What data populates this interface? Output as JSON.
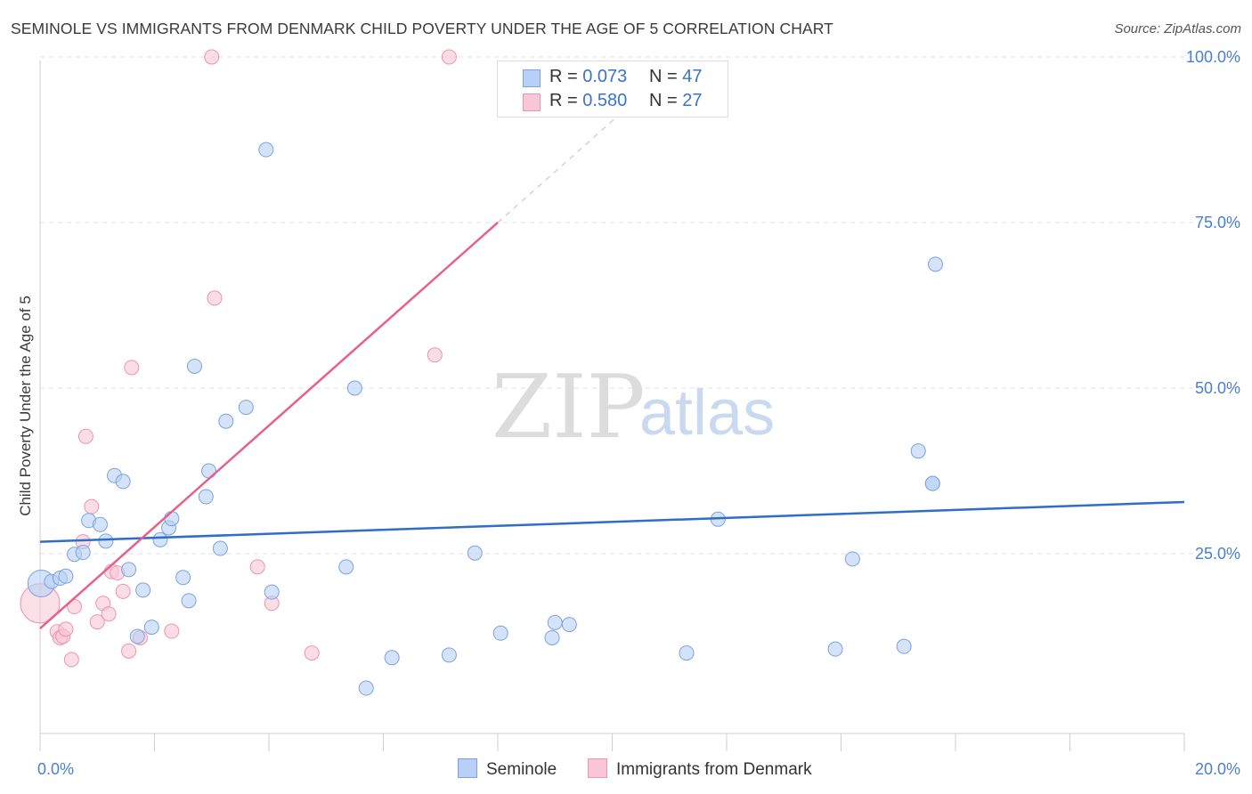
{
  "title": "SEMINOLE VS IMMIGRANTS FROM DENMARK CHILD POVERTY UNDER THE AGE OF 5 CORRELATION CHART",
  "source": "Source: ZipAtlas.com",
  "watermark": {
    "zip": "ZIP",
    "atlas": "atlas"
  },
  "legend": {
    "rows": [
      {
        "r_label": "R = ",
        "r_value": "0.073",
        "n_label": "N = ",
        "n_value": "47"
      },
      {
        "r_label": "R = ",
        "r_value": "0.580",
        "n_label": "N = ",
        "n_value": "27"
      }
    ]
  },
  "bottom_legend": {
    "series1": "Seminole",
    "series2": "Immigrants from Denmark"
  },
  "colors": {
    "seminole_fill": "#b8d0f5",
    "seminole_stroke": "#7aa3de",
    "seminole_line": "#2e6ec8",
    "denmark_fill": "#f8c6d6",
    "denmark_stroke": "#ee93b0",
    "denmark_line": "#e8608a",
    "tick_text": "#4a7fd0",
    "grid": "#e0e0e0"
  },
  "chart_data": {
    "type": "scatter",
    "title": "SEMINOLE VS IMMIGRANTS FROM DENMARK CHILD POVERTY UNDER THE AGE OF 5 CORRELATION CHART",
    "xlabel": "",
    "ylabel": "Child Poverty Under the Age of 5",
    "xlim": [
      0,
      20
    ],
    "ylim": [
      0,
      100
    ],
    "x_tick_labels": [
      "0.0%",
      "20.0%"
    ],
    "y_ticks": [
      25,
      50,
      75,
      100
    ],
    "y_tick_labels": [
      "25.0%",
      "50.0%",
      "75.0%",
      "100.0%"
    ],
    "grid": true,
    "legend_position": "top-center",
    "series": [
      {
        "name": "Seminole",
        "R": 0.073,
        "N": 47,
        "trend": {
          "x0": 0,
          "y0": 26.8,
          "x1": 20,
          "y1": 32.8
        },
        "points": [
          [
            0.02,
            20.5
          ],
          [
            0.2,
            20.8
          ],
          [
            0.35,
            21.3
          ],
          [
            0.45,
            21.6
          ],
          [
            0.6,
            24.9
          ],
          [
            0.75,
            25.2
          ],
          [
            0.85,
            30.0
          ],
          [
            1.05,
            29.4
          ],
          [
            1.15,
            26.9
          ],
          [
            1.3,
            36.8
          ],
          [
            1.45,
            35.9
          ],
          [
            1.55,
            22.6
          ],
          [
            1.7,
            12.5
          ],
          [
            1.8,
            19.5
          ],
          [
            1.95,
            13.9
          ],
          [
            2.1,
            27.1
          ],
          [
            2.25,
            28.9
          ],
          [
            2.3,
            30.3
          ],
          [
            2.5,
            21.4
          ],
          [
            2.6,
            17.9
          ],
          [
            2.7,
            53.3
          ],
          [
            2.9,
            33.6
          ],
          [
            2.95,
            37.5
          ],
          [
            3.15,
            25.8
          ],
          [
            3.25,
            45.0
          ],
          [
            3.6,
            47.1
          ],
          [
            3.95,
            86.0
          ],
          [
            4.05,
            19.2
          ],
          [
            5.35,
            23.0
          ],
          [
            5.5,
            50.0
          ],
          [
            5.7,
            4.7
          ],
          [
            6.15,
            9.3
          ],
          [
            7.15,
            9.7
          ],
          [
            7.6,
            25.1
          ],
          [
            8.05,
            13.0
          ],
          [
            8.95,
            12.3
          ],
          [
            9.0,
            14.6
          ],
          [
            9.25,
            14.3
          ],
          [
            11.3,
            10.0
          ],
          [
            11.85,
            30.2
          ],
          [
            13.9,
            10.6
          ],
          [
            14.2,
            24.2
          ],
          [
            15.1,
            11.0
          ],
          [
            15.35,
            40.5
          ],
          [
            15.6,
            35.6
          ],
          [
            15.6,
            35.6
          ],
          [
            15.65,
            68.7
          ]
        ]
      },
      {
        "name": "Immigrants from Denmark",
        "R": 0.58,
        "N": 27,
        "trend": {
          "x0": 0,
          "y0": 13.7,
          "x1": 8.0,
          "y1": 75.0
        },
        "trend_dashed": {
          "x0": 8.0,
          "y0": 75.0,
          "x1": 11.0,
          "y1": 98.0
        },
        "points": [
          [
            0.0,
            17.5
          ],
          [
            0.3,
            13.2
          ],
          [
            0.35,
            12.3
          ],
          [
            0.4,
            12.5
          ],
          [
            0.45,
            13.6
          ],
          [
            0.55,
            9.0
          ],
          [
            0.6,
            17.0
          ],
          [
            0.75,
            26.8
          ],
          [
            0.8,
            42.7
          ],
          [
            0.9,
            32.1
          ],
          [
            1.0,
            14.7
          ],
          [
            1.1,
            17.5
          ],
          [
            1.2,
            15.9
          ],
          [
            1.25,
            22.3
          ],
          [
            1.35,
            22.1
          ],
          [
            1.45,
            19.3
          ],
          [
            1.55,
            10.3
          ],
          [
            1.6,
            53.1
          ],
          [
            1.75,
            12.3
          ],
          [
            2.3,
            13.3
          ],
          [
            3.0,
            100.0
          ],
          [
            3.05,
            63.6
          ],
          [
            3.8,
            23.0
          ],
          [
            4.05,
            17.5
          ],
          [
            4.75,
            10.0
          ],
          [
            6.9,
            55.0
          ],
          [
            7.15,
            100.0
          ]
        ]
      }
    ]
  }
}
